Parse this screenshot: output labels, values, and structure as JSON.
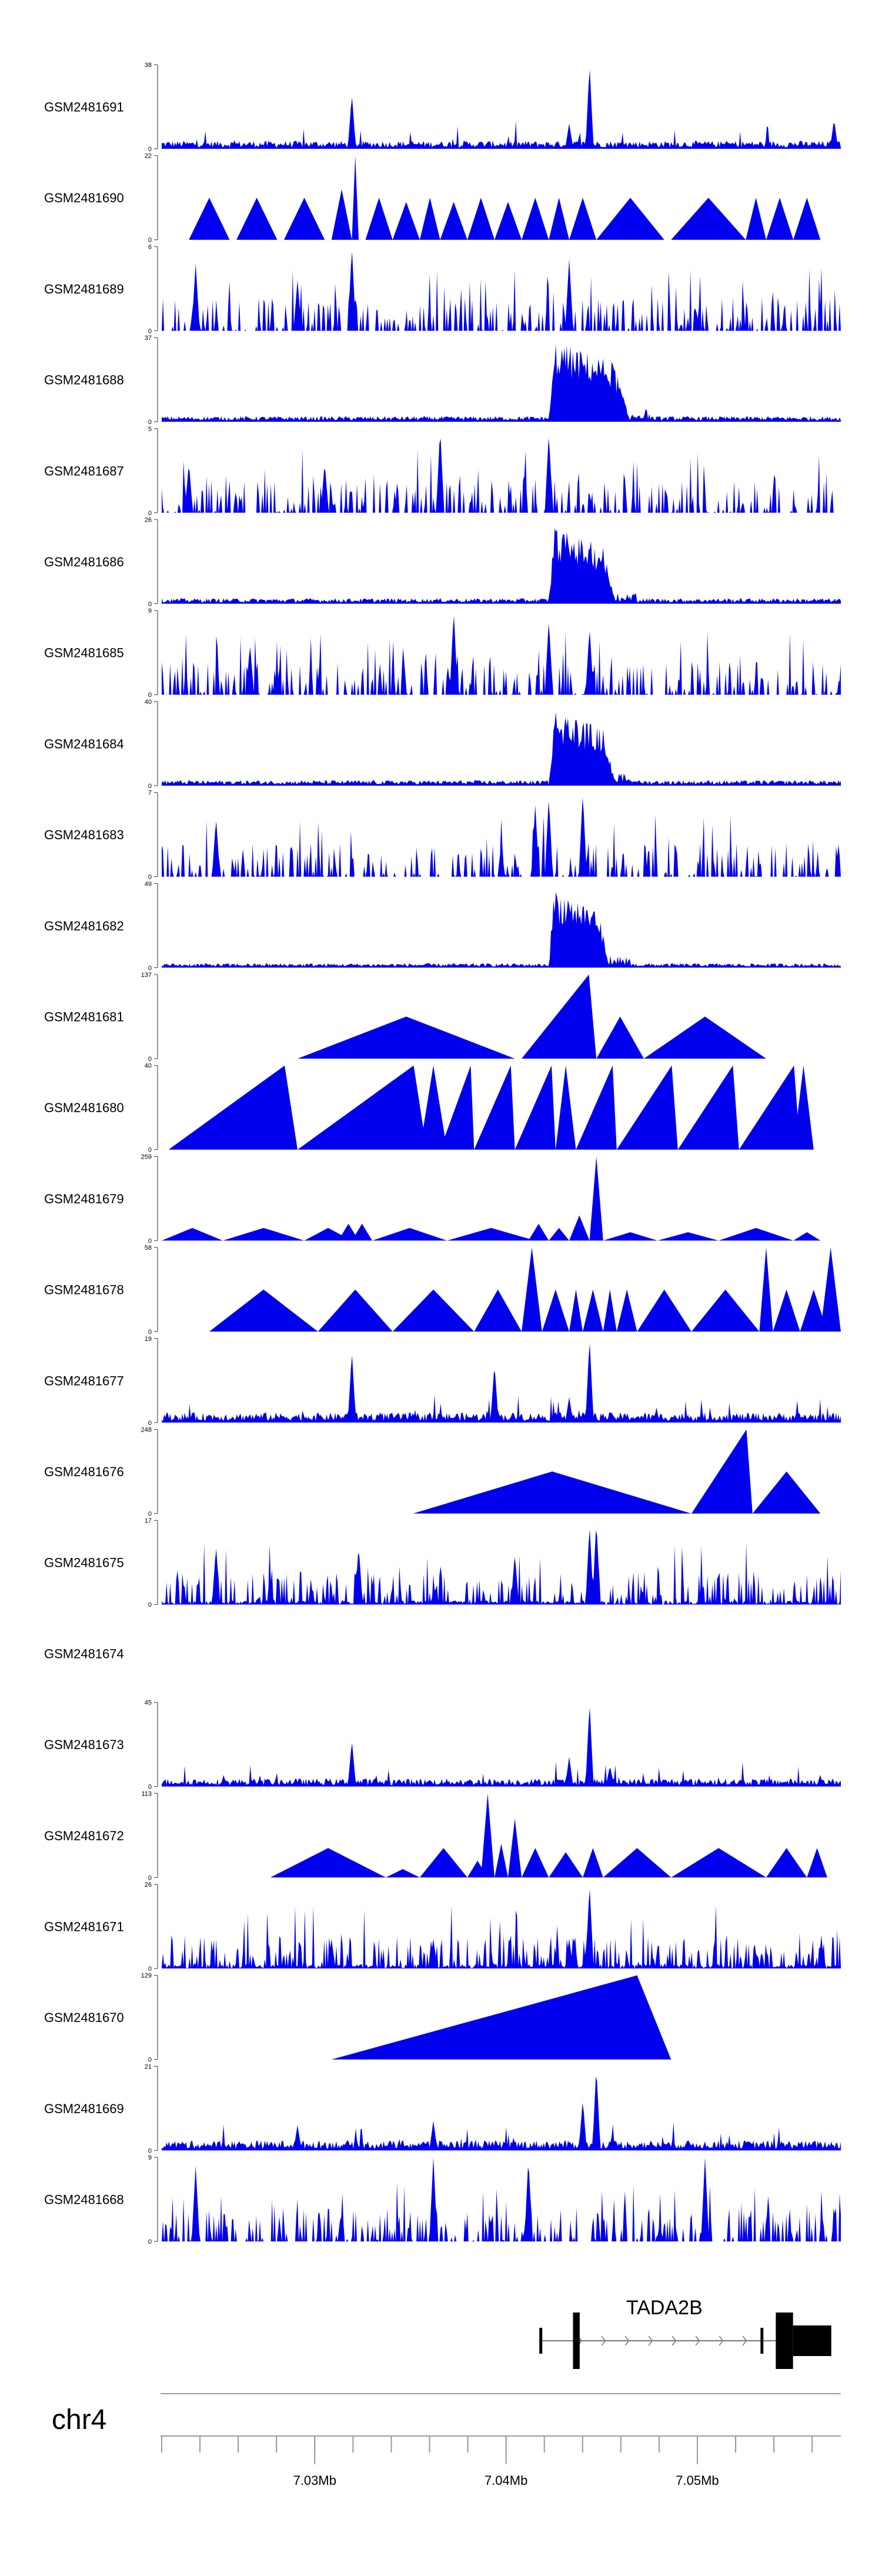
{
  "chart_data": {
    "type": "genome-browser-tracks",
    "chromosome": "chr4",
    "x_range_bp": [
      7022000,
      7057500
    ],
    "x_ticks": [
      {
        "pos": 7030000,
        "label": "7.03Mb"
      },
      {
        "pos": 7040000,
        "label": "7.04Mb"
      },
      {
        "pos": 7050000,
        "label": "7.05Mb"
      }
    ],
    "track_color": "#0000ee",
    "tracks": [
      {
        "name": "GSM2481691",
        "ymax_label": "38",
        "ymax": 38,
        "pattern": "dense",
        "peaks": [
          [
            0.28,
            0.65
          ],
          [
            0.63,
            1.0
          ],
          [
            0.6,
            0.3
          ],
          [
            0.99,
            0.35
          ]
        ],
        "baseline": 0.08
      },
      {
        "name": "GSM2481690",
        "ymax_label": "22",
        "ymax": 22,
        "pattern": "triangles",
        "triangles": [
          [
            0.04,
            0.1,
            0.5
          ],
          [
            0.11,
            0.17,
            0.5
          ],
          [
            0.18,
            0.24,
            0.5
          ],
          [
            0.25,
            0.28,
            0.6
          ],
          [
            0.28,
            0.29,
            1.0
          ],
          [
            0.3,
            0.34,
            0.5
          ],
          [
            0.34,
            0.38,
            0.45
          ],
          [
            0.38,
            0.41,
            0.5
          ],
          [
            0.41,
            0.45,
            0.45
          ],
          [
            0.45,
            0.49,
            0.5
          ],
          [
            0.49,
            0.53,
            0.45
          ],
          [
            0.53,
            0.57,
            0.5
          ],
          [
            0.57,
            0.6,
            0.5
          ],
          [
            0.6,
            0.64,
            0.5
          ],
          [
            0.64,
            0.74,
            0.5
          ],
          [
            0.75,
            0.86,
            0.5
          ],
          [
            0.86,
            0.89,
            0.5
          ],
          [
            0.89,
            0.93,
            0.5
          ],
          [
            0.93,
            0.97,
            0.5
          ]
        ]
      },
      {
        "name": "GSM2481689",
        "ymax_label": "6",
        "ymax": 6,
        "pattern": "spiky",
        "peaks": [
          [
            0.28,
            1.0
          ],
          [
            0.6,
            0.85
          ],
          [
            0.05,
            0.8
          ],
          [
            0.2,
            0.6
          ]
        ],
        "baseline": 0.0
      },
      {
        "name": "GSM2481688",
        "ymax_label": "37",
        "ymax": 37,
        "pattern": "block",
        "block": [
          0.57,
          0.69,
          1.0
        ],
        "baseline": 0.05
      },
      {
        "name": "GSM2481687",
        "ymax_label": "5",
        "ymax": 5,
        "pattern": "spiky",
        "peaks": [
          [
            0.41,
            1.0
          ],
          [
            0.57,
            0.95
          ],
          [
            0.04,
            0.6
          ],
          [
            0.24,
            0.6
          ]
        ],
        "baseline": 0.0
      },
      {
        "name": "GSM2481686",
        "ymax_label": "26",
        "ymax": 26,
        "pattern": "block",
        "block": [
          0.57,
          0.67,
          0.95
        ],
        "baseline": 0.05
      },
      {
        "name": "GSM2481685",
        "ymax_label": "9",
        "ymax": 9,
        "pattern": "spiky",
        "peaks": [
          [
            0.43,
            1.0
          ],
          [
            0.57,
            0.9
          ],
          [
            0.63,
            0.8
          ],
          [
            0.13,
            0.6
          ]
        ],
        "baseline": 0.0
      },
      {
        "name": "GSM2481684",
        "ymax_label": "40",
        "ymax": 40,
        "pattern": "block",
        "block": [
          0.57,
          0.67,
          0.95
        ],
        "baseline": 0.05
      },
      {
        "name": "GSM2481683",
        "ymax_label": "7",
        "ymax": 7,
        "pattern": "spiky",
        "peaks": [
          [
            0.55,
            0.85
          ],
          [
            0.57,
            0.95
          ],
          [
            0.62,
            1.0
          ],
          [
            0.08,
            0.7
          ]
        ],
        "baseline": 0.0
      },
      {
        "name": "GSM2481682",
        "ymax_label": "49",
        "ymax": 49,
        "pattern": "block",
        "block": [
          0.57,
          0.66,
          1.0
        ],
        "baseline": 0.04
      },
      {
        "name": "GSM2481681",
        "ymax_label": "137",
        "ymax": 137,
        "pattern": "triangles",
        "triangles": [
          [
            0.2,
            0.52,
            0.5
          ],
          [
            0.53,
            0.64,
            1.0
          ],
          [
            0.64,
            0.71,
            0.5
          ],
          [
            0.71,
            0.89,
            0.5
          ]
        ]
      },
      {
        "name": "GSM2481680",
        "ymax_label": "40",
        "ymax": 40,
        "pattern": "triangles",
        "triangles": [
          [
            0.01,
            0.2,
            1.0
          ],
          [
            0.2,
            0.39,
            1.0
          ],
          [
            0.38,
            0.42,
            1.0
          ],
          [
            0.41,
            0.46,
            1.0
          ],
          [
            0.46,
            0.52,
            1.0
          ],
          [
            0.52,
            0.58,
            1.0
          ],
          [
            0.58,
            0.61,
            1.0
          ],
          [
            0.61,
            0.67,
            1.0
          ],
          [
            0.67,
            0.76,
            1.0
          ],
          [
            0.76,
            0.85,
            1.0
          ],
          [
            0.85,
            0.94,
            1.0
          ],
          [
            0.93,
            0.96,
            1.0
          ]
        ]
      },
      {
        "name": "GSM2481679",
        "ymax_label": "259",
        "ymax": 259,
        "pattern": "triangles",
        "triangles": [
          [
            0.0,
            0.09,
            0.15
          ],
          [
            0.09,
            0.21,
            0.15
          ],
          [
            0.21,
            0.28,
            0.15
          ],
          [
            0.26,
            0.29,
            0.2
          ],
          [
            0.28,
            0.31,
            0.2
          ],
          [
            0.31,
            0.42,
            0.15
          ],
          [
            0.42,
            0.55,
            0.15
          ],
          [
            0.54,
            0.57,
            0.2
          ],
          [
            0.57,
            0.6,
            0.15
          ],
          [
            0.6,
            0.63,
            0.3
          ],
          [
            0.63,
            0.65,
            1.0
          ],
          [
            0.65,
            0.73,
            0.1
          ],
          [
            0.73,
            0.82,
            0.1
          ],
          [
            0.82,
            0.93,
            0.15
          ],
          [
            0.93,
            0.97,
            0.1
          ]
        ]
      },
      {
        "name": "GSM2481678",
        "ymax_label": "58",
        "ymax": 58,
        "pattern": "triangles",
        "triangles": [
          [
            0.07,
            0.23,
            0.5
          ],
          [
            0.23,
            0.34,
            0.5
          ],
          [
            0.34,
            0.46,
            0.5
          ],
          [
            0.46,
            0.53,
            0.5
          ],
          [
            0.53,
            0.56,
            1.0
          ],
          [
            0.56,
            0.6,
            0.5
          ],
          [
            0.6,
            0.62,
            0.5
          ],
          [
            0.62,
            0.65,
            0.5
          ],
          [
            0.65,
            0.67,
            0.5
          ],
          [
            0.67,
            0.7,
            0.5
          ],
          [
            0.7,
            0.78,
            0.5
          ],
          [
            0.78,
            0.88,
            0.5
          ],
          [
            0.88,
            0.9,
            1.0
          ],
          [
            0.9,
            0.94,
            0.5
          ],
          [
            0.94,
            0.98,
            0.5
          ],
          [
            0.97,
            1.0,
            1.0
          ]
        ]
      },
      {
        "name": "GSM2481677",
        "ymax_label": "19",
        "ymax": 19,
        "pattern": "dense",
        "peaks": [
          [
            0.28,
            0.85
          ],
          [
            0.49,
            0.7
          ],
          [
            0.63,
            1.0
          ],
          [
            0.6,
            0.3
          ]
        ],
        "baseline": 0.1
      },
      {
        "name": "GSM2481676",
        "ymax_label": "248",
        "ymax": 248,
        "pattern": "triangles",
        "triangles": [
          [
            0.37,
            0.78,
            0.5
          ],
          [
            0.78,
            0.87,
            1.0
          ],
          [
            0.87,
            0.97,
            0.5
          ]
        ]
      },
      {
        "name": "GSM2481675",
        "ymax_label": "17",
        "ymax": 17,
        "pattern": "spiky",
        "peaks": [
          [
            0.64,
            1.0
          ],
          [
            0.63,
            0.95
          ],
          [
            0.08,
            0.7
          ],
          [
            0.29,
            0.7
          ],
          [
            0.52,
            0.6
          ]
        ],
        "baseline": 0.05
      },
      {
        "name": "GSM2481674",
        "ymax_label": "",
        "ymax": 0,
        "pattern": "empty"
      },
      {
        "name": "GSM2481673",
        "ymax_label": "45",
        "ymax": 45,
        "pattern": "dense",
        "peaks": [
          [
            0.28,
            0.55
          ],
          [
            0.63,
            1.0
          ],
          [
            0.6,
            0.35
          ],
          [
            0.66,
            0.25
          ]
        ],
        "baseline": 0.08
      },
      {
        "name": "GSM2481672",
        "ymax_label": "113",
        "ymax": 113,
        "pattern": "triangles",
        "triangles": [
          [
            0.16,
            0.33,
            0.35
          ],
          [
            0.33,
            0.38,
            0.1
          ],
          [
            0.38,
            0.45,
            0.35
          ],
          [
            0.45,
            0.48,
            0.2
          ],
          [
            0.47,
            0.49,
            1.0
          ],
          [
            0.49,
            0.51,
            0.4
          ],
          [
            0.51,
            0.53,
            0.7
          ],
          [
            0.53,
            0.57,
            0.35
          ],
          [
            0.57,
            0.62,
            0.3
          ],
          [
            0.62,
            0.65,
            0.35
          ],
          [
            0.65,
            0.75,
            0.35
          ],
          [
            0.75,
            0.89,
            0.35
          ],
          [
            0.89,
            0.95,
            0.35
          ],
          [
            0.95,
            0.98,
            0.35
          ]
        ]
      },
      {
        "name": "GSM2481671",
        "ymax_label": "26",
        "ymax": 26,
        "pattern": "spiky",
        "peaks": [
          [
            0.63,
            1.0
          ],
          [
            0.25,
            0.35
          ],
          [
            0.4,
            0.35
          ],
          [
            0.6,
            0.35
          ]
        ],
        "baseline": 0.05
      },
      {
        "name": "GSM2481670",
        "ymax_label": "129",
        "ymax": 129,
        "pattern": "triangles",
        "triangles": [
          [
            0.25,
            0.75,
            1.0
          ]
        ]
      },
      {
        "name": "GSM2481669",
        "ymax_label": "21",
        "ymax": 21,
        "pattern": "dense",
        "peaks": [
          [
            0.64,
            1.0
          ],
          [
            0.62,
            0.6
          ],
          [
            0.4,
            0.35
          ],
          [
            0.2,
            0.3
          ]
        ],
        "baseline": 0.1
      },
      {
        "name": "GSM2481668",
        "ymax_label": "9",
        "ymax": 9,
        "pattern": "spiky",
        "peaks": [
          [
            0.4,
            1.0
          ],
          [
            0.54,
            1.0
          ],
          [
            0.8,
            1.0
          ],
          [
            0.05,
            0.9
          ]
        ],
        "baseline": 0.0
      }
    ],
    "gene": {
      "name": "TADA2B",
      "strand": "+",
      "start_bp": 7041800,
      "end_bp": 7057000,
      "exons": [
        {
          "start_bp": 7043500,
          "end_bp": 7043850,
          "thick": true
        },
        {
          "start_bp": 7053300,
          "end_bp": 7053450,
          "thick": false
        },
        {
          "start_bp": 7054100,
          "end_bp": 7055000,
          "thick": true
        },
        {
          "start_bp": 7055000,
          "end_bp": 7057000,
          "thick": "mid"
        }
      ]
    }
  }
}
